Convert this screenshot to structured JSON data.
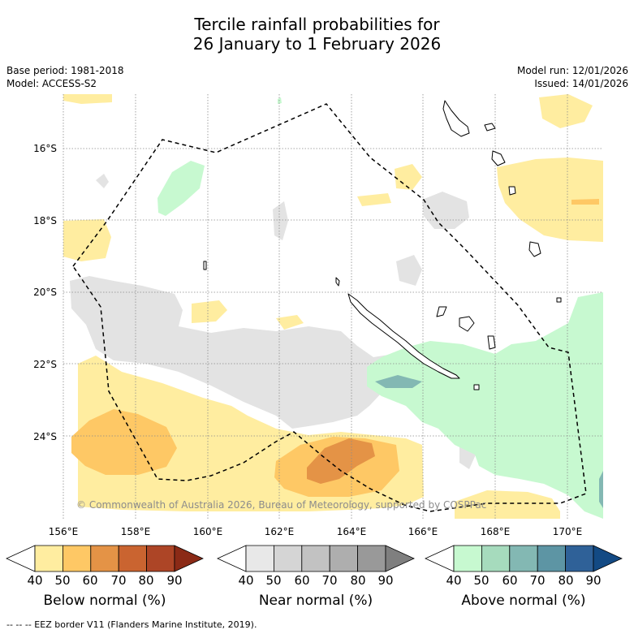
{
  "title": {
    "line1": "Tercile rainfall probabilities for",
    "line2": "26 January to 1 February 2026"
  },
  "meta": {
    "base_period": "Base period: 1981-2018",
    "model": "Model: ACCESS-S2",
    "model_run": "Model run: 12/01/2026",
    "issued": "Issued: 14/01/2026"
  },
  "axes": {
    "lat_labels": [
      "16°S",
      "18°S",
      "20°S",
      "22°S",
      "24°S"
    ],
    "lon_labels": [
      "156°E",
      "158°E",
      "160°E",
      "162°E",
      "164°E",
      "166°E",
      "168°E",
      "170°E"
    ]
  },
  "copyright": "© Commonwealth of Australia 2026, Bureau of Meteorology, supported by COSPPac",
  "legend": {
    "ticks": [
      "40",
      "50",
      "60",
      "70",
      "80",
      "90"
    ],
    "below": {
      "label": "Below normal (%)",
      "colors": [
        "#ffffff",
        "#ffeda0",
        "#fec865",
        "#e49346",
        "#ca6430",
        "#ad4526",
        "#8b2a16"
      ]
    },
    "near": {
      "label": "Near normal (%)",
      "colors": [
        "#ffffff",
        "#e8e8e8",
        "#d5d5d5",
        "#c2c2c2",
        "#aeaeae",
        "#999999",
        "#7f7f7f"
      ]
    },
    "above": {
      "label": "Above normal (%)",
      "colors": [
        "#ffffff",
        "#c7f9d0",
        "#a6dbbd",
        "#83b8b3",
        "#5d95a4",
        "#2f6198",
        "#134a84"
      ]
    }
  },
  "footnote": "--  --  -- EEZ border V11 (Flanders Marine Institute, 2019)."
}
